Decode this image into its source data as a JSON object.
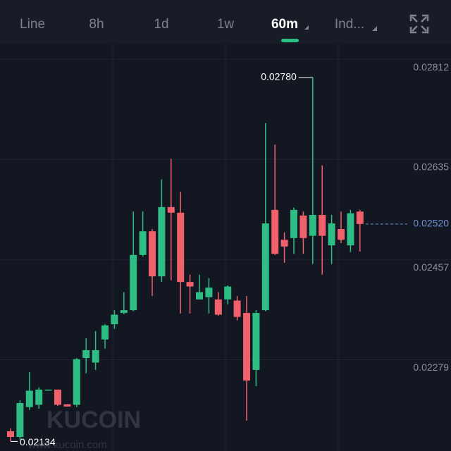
{
  "tabs": {
    "items": [
      "Line",
      "8h",
      "1d",
      "1w",
      "60m",
      "Ind..."
    ],
    "active": 4
  },
  "chart_data": {
    "type": "candlestick",
    "open": [
      0.02152,
      0.02142,
      0.02195,
      0.02199,
      0.02225,
      0.02226,
      0.022,
      0.02199,
      0.02282,
      0.02274,
      0.02315,
      0.02342,
      0.02362,
      0.02367,
      0.02465,
      0.02507,
      0.02427,
      0.0255,
      0.0254,
      0.02417,
      0.02386,
      0.0239,
      0.02386,
      0.02386,
      0.02384,
      0.02362,
      0.02261,
      0.02367,
      0.02545,
      0.02492,
      0.02495,
      0.02535,
      0.02499,
      0.02536,
      0.02482,
      0.02511,
      0.02482,
      0.02542
    ],
    "high": [
      0.02157,
      0.02207,
      0.02257,
      0.0223,
      0.02226,
      0.02226,
      0.022,
      0.02282,
      0.02317,
      0.0233,
      0.02342,
      0.02367,
      0.02399,
      0.02542,
      0.02542,
      0.02511,
      0.02599,
      0.02636,
      0.02577,
      0.0243,
      0.0243,
      0.02424,
      0.02399,
      0.02411,
      0.02392,
      0.02392,
      0.02367,
      0.02699,
      0.02661,
      0.02505,
      0.02549,
      0.02542,
      0.0278,
      0.02624,
      0.02536,
      0.02542,
      0.02545,
      0.02545
    ],
    "low": [
      0.02134,
      0.02137,
      0.0219,
      0.02192,
      0.02224,
      0.02197,
      0.02196,
      0.02195,
      0.02255,
      0.02261,
      0.02299,
      0.02334,
      0.0236,
      0.02365,
      0.02462,
      0.02392,
      0.02417,
      0.0242,
      0.02361,
      0.02361,
      0.02386,
      0.02361,
      0.02357,
      0.02377,
      0.02349,
      0.02171,
      0.02232,
      0.02365,
      0.02465,
      0.02451,
      0.02467,
      0.02467,
      0.02449,
      0.0243,
      0.02449,
      0.02486,
      0.0247,
      0.02471
    ],
    "close": [
      0.02142,
      0.02202,
      0.02224,
      0.02226,
      0.02226,
      0.02199,
      0.02196,
      0.0228,
      0.02296,
      0.02296,
      0.0234,
      0.02359,
      0.02367,
      0.02465,
      0.02507,
      0.02427,
      0.0255,
      0.0254,
      0.02417,
      0.02409,
      0.02399,
      0.02407,
      0.02359,
      0.02409,
      0.02355,
      0.02242,
      0.02362,
      0.02521,
      0.02467,
      0.0248,
      0.02545,
      0.02495,
      0.02536,
      0.02499,
      0.02521,
      0.02492,
      0.02539,
      0.0252
    ],
    "up_color": "#2ebd85",
    "down_color": "#f0616b",
    "ylim": [
      0.02117,
      0.0284
    ],
    "yticks": [
      0.02279,
      0.02457,
      0.02635,
      0.02812
    ],
    "grid": true,
    "last_price": {
      "value": 0.0252,
      "label": "0.02520"
    },
    "high_label": "0.02780",
    "low_label": "0.02134",
    "watermark": "KUCOIN",
    "watermark_url": "www.kucoin.com"
  }
}
